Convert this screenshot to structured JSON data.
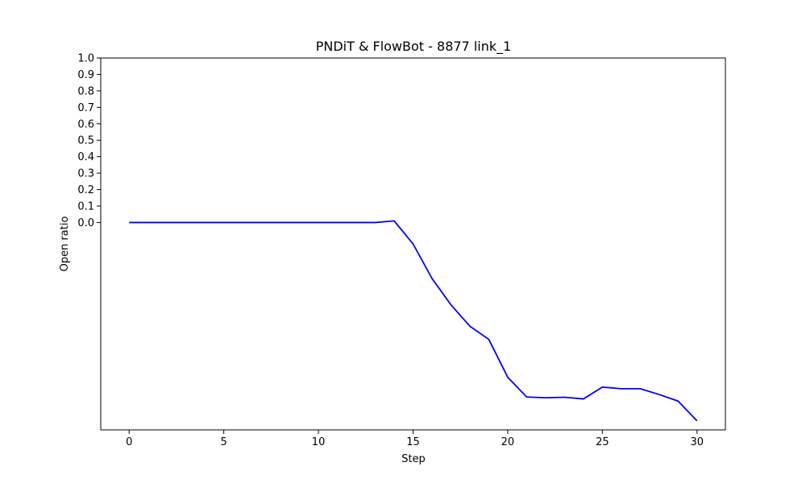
{
  "chart_data": {
    "type": "line",
    "title": "PNDiT & FlowBot - 8877 link_1",
    "xlabel": "Step",
    "ylabel": "Open ratio",
    "xlim": [
      -1.5,
      31.5
    ],
    "ylim": [
      -1.26,
      1.0
    ],
    "x_ticks": [
      0,
      5,
      10,
      15,
      20,
      25,
      30
    ],
    "y_ticks": [
      0.0,
      0.1,
      0.2,
      0.3,
      0.4,
      0.5,
      0.6,
      0.7,
      0.8,
      0.9,
      1.0
    ],
    "y_tick_labels": [
      "0.0",
      "0.1",
      "0.2",
      "0.3",
      "0.4",
      "0.5",
      "0.6",
      "0.7",
      "0.8",
      "0.9",
      "1.0"
    ],
    "grid": false,
    "series": [
      {
        "color": "#0000ff",
        "x": [
          0,
          1,
          2,
          3,
          4,
          5,
          6,
          7,
          8,
          9,
          10,
          11,
          12,
          13,
          14,
          15,
          16,
          17,
          18,
          19,
          20,
          21,
          22,
          23,
          24,
          25,
          26,
          27,
          28,
          29,
          30
        ],
        "y": [
          0.0,
          0.0,
          0.0,
          0.0,
          0.0,
          0.0,
          0.0,
          0.0,
          0.0,
          0.0,
          0.0,
          0.0,
          0.0,
          0.0,
          0.01,
          -0.13,
          -0.34,
          -0.5,
          -0.63,
          -0.71,
          -0.94,
          -1.06,
          -1.065,
          -1.062,
          -1.072,
          -1.0,
          -1.01,
          -1.01,
          -1.045,
          -1.085,
          -1.205
        ]
      }
    ]
  }
}
